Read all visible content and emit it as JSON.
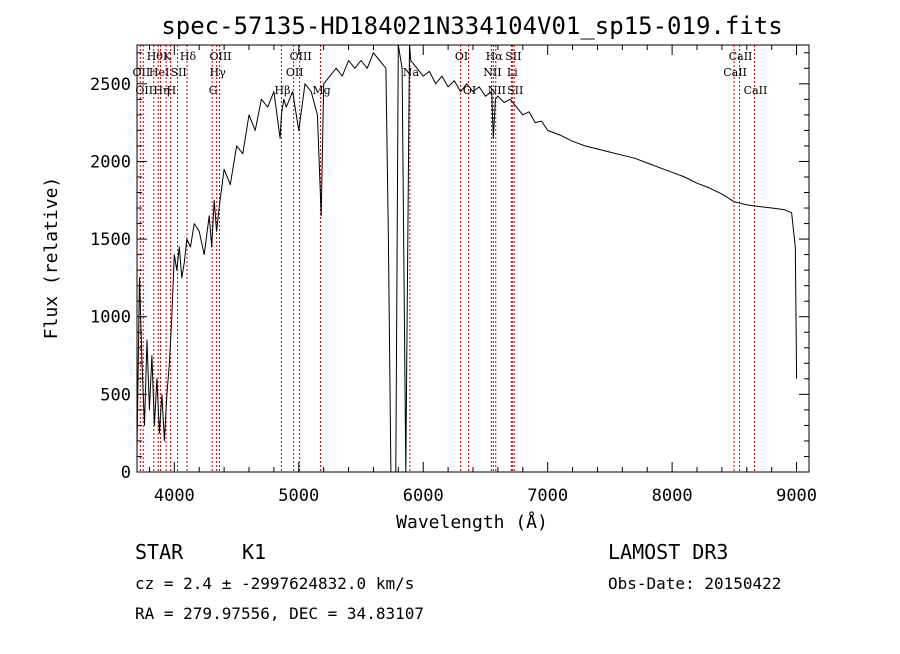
{
  "chart_data": {
    "type": "line",
    "title": "spec-57135-HD184021N334104V01_sp15-019.fits",
    "xlabel": "Wavelength (Å)",
    "ylabel": "Flux (relative)",
    "xlim": [
      3700,
      9100
    ],
    "ylim": [
      0,
      2750
    ],
    "xticks": [
      4000,
      5000,
      6000,
      7000,
      8000,
      9000
    ],
    "yticks": [
      0,
      500,
      1000,
      1500,
      2000,
      2500
    ],
    "series": [
      {
        "name": "spectrum",
        "x": [
          3700,
          3720,
          3740,
          3760,
          3780,
          3800,
          3820,
          3840,
          3860,
          3880,
          3900,
          3920,
          3940,
          3960,
          3980,
          4000,
          4020,
          4040,
          4060,
          4080,
          4100,
          4130,
          4160,
          4200,
          4240,
          4280,
          4300,
          4320,
          4340,
          4360,
          4400,
          4450,
          4500,
          4550,
          4600,
          4650,
          4700,
          4750,
          4800,
          4850,
          4860,
          4880,
          4900,
          4950,
          5000,
          5050,
          5100,
          5150,
          5180,
          5200,
          5250,
          5300,
          5350,
          5400,
          5450,
          5500,
          5550,
          5600,
          5650,
          5700,
          5720,
          5740,
          5760,
          5780,
          5800,
          5830,
          5860,
          5890,
          5900,
          5950,
          6000,
          6050,
          6100,
          6150,
          6200,
          6250,
          6300,
          6350,
          6400,
          6450,
          6500,
          6550,
          6563,
          6580,
          6600,
          6650,
          6700,
          6750,
          6800,
          6850,
          6900,
          6950,
          7000,
          7100,
          7200,
          7300,
          7400,
          7500,
          7600,
          7700,
          7800,
          7900,
          8000,
          8100,
          8200,
          8300,
          8400,
          8500,
          8600,
          8700,
          8800,
          8900,
          8960,
          8990,
          9000
        ],
        "y": [
          150,
          1250,
          700,
          300,
          850,
          400,
          750,
          300,
          600,
          250,
          500,
          200,
          500,
          700,
          1000,
          1400,
          1300,
          1450,
          1250,
          1350,
          1500,
          1450,
          1600,
          1550,
          1400,
          1650,
          1450,
          1750,
          1550,
          1700,
          1950,
          1850,
          2100,
          2050,
          2300,
          2200,
          2400,
          2350,
          2450,
          2150,
          2300,
          2400,
          2350,
          2450,
          2200,
          2500,
          2450,
          2300,
          1650,
          2500,
          2550,
          2600,
          2550,
          2650,
          2600,
          2650,
          2600,
          2700,
          2650,
          2600,
          1500,
          0,
          0,
          0,
          2750,
          2600,
          0,
          2750,
          2650,
          2600,
          2550,
          2580,
          2500,
          2550,
          2480,
          2520,
          2450,
          2500,
          2450,
          2480,
          2420,
          2450,
          2150,
          2400,
          2420,
          2380,
          2400,
          2350,
          2300,
          2320,
          2250,
          2260,
          2200,
          2170,
          2130,
          2100,
          2080,
          2060,
          2040,
          2020,
          1990,
          1960,
          1930,
          1900,
          1860,
          1830,
          1790,
          1740,
          1720,
          1710,
          1700,
          1690,
          1670,
          1450,
          600
        ]
      }
    ],
    "line_markers": [
      {
        "wavelength": 3727,
        "label": "OII",
        "row": 2
      },
      {
        "wavelength": 3750,
        "label": "OII",
        "row": 3
      },
      {
        "wavelength": 3835,
        "label": "Hθ",
        "row": 1
      },
      {
        "wavelength": 3870,
        "label": "HeI",
        "row": 2
      },
      {
        "wavelength": 3889,
        "label": "Hη",
        "row": 3
      },
      {
        "wavelength": 3934,
        "label": "K",
        "row": 1
      },
      {
        "wavelength": 3969,
        "label": "H",
        "row": 3
      },
      {
        "wavelength": 4026,
        "label": "SII",
        "row": 2
      },
      {
        "wavelength": 4102,
        "label": "Hδ",
        "row": 1
      },
      {
        "wavelength": 4304,
        "label": "G",
        "row": 3
      },
      {
        "wavelength": 4340,
        "label": "Hγ",
        "row": 2
      },
      {
        "wavelength": 4363,
        "label": "OIII",
        "row": 1
      },
      {
        "wavelength": 4861,
        "label": "Hβ",
        "row": 3
      },
      {
        "wavelength": 4959,
        "label": "OII",
        "row": 2
      },
      {
        "wavelength": 5007,
        "label": "OIII",
        "row": 1
      },
      {
        "wavelength": 5175,
        "label": "Mg",
        "row": 3
      },
      {
        "wavelength": 5893,
        "label": "Na",
        "row": 2
      },
      {
        "wavelength": 6300,
        "label": "OI",
        "row": 1
      },
      {
        "wavelength": 6364,
        "label": "OI",
        "row": 3
      },
      {
        "wavelength": 6548,
        "label": "NII",
        "row": 2
      },
      {
        "wavelength": 6563,
        "label": "Hα",
        "row": 1
      },
      {
        "wavelength": 6583,
        "label": "NII",
        "row": 3
      },
      {
        "wavelength": 6708,
        "label": "Li",
        "row": 2
      },
      {
        "wavelength": 6716,
        "label": "SII",
        "row": 1
      },
      {
        "wavelength": 6731,
        "label": "SII",
        "row": 3
      },
      {
        "wavelength": 8498,
        "label": "CaII",
        "row": 2
      },
      {
        "wavelength": 8542,
        "label": "CaII",
        "row": 1
      },
      {
        "wavelength": 8662,
        "label": "CaII",
        "row": 3
      }
    ]
  },
  "footer": {
    "class_label": "STAR",
    "subclass": "K1",
    "survey": "LAMOST DR3",
    "cz": "cz = 2.4 ± -2997624832.0 km/s",
    "obs_date": "Obs-Date: 20150422",
    "coords": "RA = 279.97556, DEC =  34.83107"
  },
  "colors": {
    "line": "#000000",
    "marker": "#cc0000"
  }
}
